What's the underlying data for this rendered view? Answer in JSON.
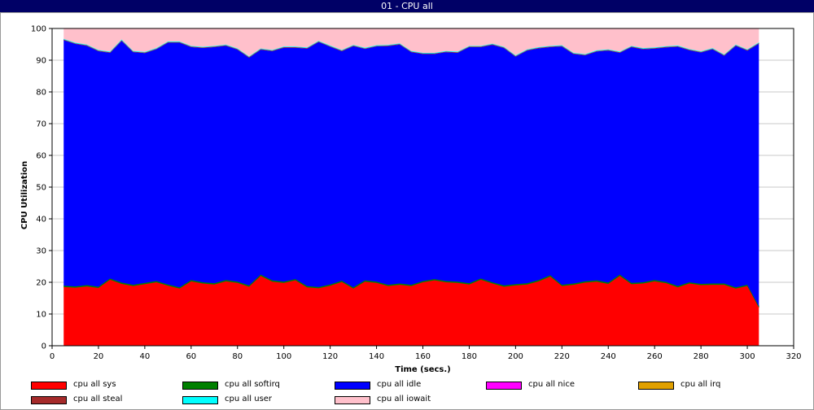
{
  "window": {
    "title": "01 - CPU all"
  },
  "chart_data": {
    "type": "area",
    "stacked": true,
    "xlabel": "Time (secs.)",
    "ylabel": "CPU Utilization",
    "xlim": [
      0,
      320
    ],
    "ylim": [
      0,
      100
    ],
    "xticks": [
      0,
      20,
      40,
      60,
      80,
      100,
      120,
      140,
      160,
      180,
      200,
      220,
      240,
      260,
      280,
      300,
      320
    ],
    "yticks": [
      0,
      10,
      20,
      30,
      40,
      50,
      60,
      70,
      80,
      90,
      100
    ],
    "grid": "horizontal",
    "legend_placement": "bottom",
    "x": [
      5,
      10,
      15,
      20,
      25,
      30,
      35,
      40,
      45,
      50,
      55,
      60,
      65,
      70,
      75,
      80,
      85,
      90,
      95,
      100,
      105,
      110,
      115,
      120,
      125,
      130,
      135,
      140,
      145,
      150,
      155,
      160,
      165,
      170,
      175,
      180,
      185,
      190,
      195,
      200,
      205,
      210,
      215,
      220,
      225,
      230,
      235,
      240,
      245,
      250,
      255,
      260,
      265,
      270,
      275,
      280,
      285,
      290,
      295,
      300,
      305
    ],
    "series": [
      {
        "name": "cpu all sys",
        "color": "#ff0000",
        "values": [
          18.5,
          18.3,
          18.7,
          18.2,
          20.8,
          19.5,
          18.8,
          19.4,
          20.0,
          18.9,
          18.0,
          20.3,
          19.6,
          19.3,
          20.3,
          19.8,
          18.6,
          22.0,
          20.2,
          19.8,
          20.6,
          18.4,
          18.1,
          18.9,
          20.1,
          18.0,
          20.2,
          19.8,
          18.8,
          19.2,
          18.8,
          20.0,
          20.6,
          20.0,
          19.8,
          19.3,
          20.8,
          19.6,
          18.6,
          19.0,
          19.3,
          20.3,
          21.8,
          18.8,
          19.2,
          19.9,
          20.2,
          19.5,
          22.0,
          19.4,
          19.6,
          20.3,
          19.7,
          18.4,
          19.6,
          19.1,
          19.2,
          19.2,
          18.0,
          18.8,
          12.0
        ]
      },
      {
        "name": "cpu all softirq",
        "color": "#008000",
        "values": [
          0.4,
          0.4,
          0.4,
          0.4,
          0.4,
          0.4,
          0.4,
          0.4,
          0.4,
          0.4,
          0.4,
          0.4,
          0.4,
          0.4,
          0.4,
          0.4,
          0.4,
          0.4,
          0.4,
          0.4,
          0.4,
          0.4,
          0.4,
          0.4,
          0.4,
          0.4,
          0.4,
          0.4,
          0.4,
          0.4,
          0.4,
          0.4,
          0.4,
          0.4,
          0.4,
          0.4,
          0.4,
          0.4,
          0.4,
          0.4,
          0.4,
          0.4,
          0.4,
          0.4,
          0.4,
          0.4,
          0.4,
          0.4,
          0.4,
          0.4,
          0.4,
          0.4,
          0.4,
          0.4,
          0.4,
          0.4,
          0.4,
          0.4,
          0.4,
          0.4,
          0.4
        ]
      },
      {
        "name": "cpu all idle",
        "color": "#0000ff",
        "values": [
          77.6,
          76.6,
          75.6,
          74.4,
          71.3,
          76.4,
          73.5,
          72.6,
          73.2,
          76.4,
          77.3,
          73.6,
          74.0,
          74.6,
          74.0,
          73.3,
          72.0,
          71.1,
          72.4,
          73.9,
          73.1,
          75.0,
          77.4,
          75.1,
          72.5,
          76.2,
          73.1,
          74.3,
          75.4,
          75.5,
          73.5,
          71.7,
          71.1,
          72.3,
          72.3,
          74.6,
          73.1,
          75.0,
          75.0,
          71.9,
          73.5,
          73.2,
          72.1,
          75.3,
          72.5,
          71.4,
          72.3,
          73.3,
          70.1,
          74.5,
          73.6,
          73.1,
          74.1,
          75.6,
          73.3,
          73.1,
          74.0,
          72.0,
          76.3,
          74.0,
          83.0
        ]
      },
      {
        "name": "cpu all nice",
        "color": "#ff00ff",
        "values": [
          0,
          0,
          0,
          0,
          0,
          0,
          0,
          0,
          0,
          0,
          0,
          0,
          0,
          0,
          0,
          0,
          0,
          0,
          0,
          0,
          0,
          0,
          0,
          0,
          0,
          0,
          0,
          0,
          0,
          0,
          0,
          0,
          0,
          0,
          0,
          0,
          0,
          0,
          0,
          0,
          0,
          0,
          0,
          0,
          0,
          0,
          0,
          0,
          0,
          0,
          0,
          0,
          0,
          0,
          0,
          0,
          0,
          0,
          0,
          0,
          0
        ]
      },
      {
        "name": "cpu all irq",
        "color": "#e0a000",
        "values": [
          0,
          0,
          0,
          0,
          0,
          0,
          0,
          0,
          0,
          0,
          0,
          0,
          0,
          0,
          0,
          0,
          0,
          0,
          0,
          0,
          0,
          0,
          0,
          0,
          0,
          0,
          0,
          0,
          0,
          0,
          0,
          0,
          0,
          0,
          0,
          0,
          0,
          0,
          0,
          0,
          0,
          0,
          0,
          0,
          0,
          0,
          0,
          0,
          0,
          0,
          0,
          0,
          0,
          0,
          0,
          0,
          0,
          0,
          0,
          0,
          0
        ]
      },
      {
        "name": "cpu all steal",
        "color": "#a52a2a",
        "values": [
          0,
          0,
          0,
          0,
          0,
          0,
          0,
          0,
          0,
          0,
          0,
          0,
          0,
          0,
          0,
          0,
          0,
          0,
          0,
          0,
          0,
          0,
          0,
          0,
          0,
          0,
          0,
          0,
          0,
          0,
          0,
          0,
          0,
          0,
          0,
          0,
          0,
          0,
          0,
          0,
          0,
          0,
          0,
          0,
          0,
          0,
          0,
          0,
          0,
          0,
          0,
          0,
          0,
          0,
          0,
          0,
          0,
          0,
          0,
          0,
          0
        ]
      },
      {
        "name": "cpu all user",
        "color": "#00ffff",
        "values": [
          0.2,
          0.2,
          0.2,
          0.2,
          0.2,
          0.2,
          0.2,
          0.2,
          0.2,
          0.2,
          0.2,
          0.2,
          0.2,
          0.2,
          0.2,
          0.2,
          0.2,
          0.2,
          0.2,
          0.2,
          0.2,
          0.2,
          0.2,
          0.2,
          0.2,
          0.2,
          0.2,
          0.2,
          0.2,
          0.2,
          0.2,
          0.2,
          0.2,
          0.2,
          0.2,
          0.2,
          0.2,
          0.2,
          0.2,
          0.2,
          0.2,
          0.2,
          0.2,
          0.2,
          0.2,
          0.2,
          0.2,
          0.2,
          0.2,
          0.2,
          0.2,
          0.2,
          0.2,
          0.2,
          0.2,
          0.2,
          0.2,
          0.2,
          0.2,
          0.2,
          0.2
        ]
      },
      {
        "name": "cpu all iowait",
        "color": "#ffc0cb",
        "values": [
          3.3,
          4.5,
          5.1,
          6.8,
          7.3,
          3.5,
          7.1,
          7.4,
          6.2,
          4.1,
          4.1,
          5.5,
          5.8,
          5.5,
          5.1,
          6.3,
          8.8,
          6.3,
          6.8,
          5.7,
          5.7,
          6.0,
          3.9,
          5.4,
          6.8,
          5.2,
          6.1,
          5.3,
          5.2,
          4.7,
          7.1,
          7.7,
          7.7,
          7.1,
          7.3,
          5.5,
          5.5,
          4.8,
          5.8,
          8.5,
          6.6,
          5.9,
          5.5,
          5.3,
          7.7,
          8.1,
          6.9,
          6.6,
          7.3,
          5.5,
          6.2,
          6.0,
          5.6,
          5.4,
          6.5,
          7.2,
          6.2,
          8.2,
          5.1,
          6.6,
          4.4
        ]
      }
    ]
  }
}
